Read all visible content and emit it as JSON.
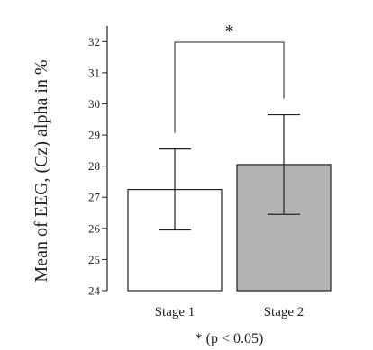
{
  "chart_data": {
    "type": "bar",
    "categories": [
      "Stage 1",
      "Stage 2"
    ],
    "values": [
      27.25,
      28.05
    ],
    "error": [
      1.3,
      1.6
    ],
    "ylabel": "Mean of EEG, (Cz) alpha in %",
    "ylim": [
      24,
      32.5
    ],
    "yticks": [
      24,
      25,
      26,
      27,
      28,
      29,
      30,
      31,
      32
    ],
    "bar_colors": [
      "#ffffff",
      "#b4b4b4"
    ],
    "significance": {
      "marker": "*",
      "note": "* (p < 0.05)"
    },
    "grid": false
  }
}
